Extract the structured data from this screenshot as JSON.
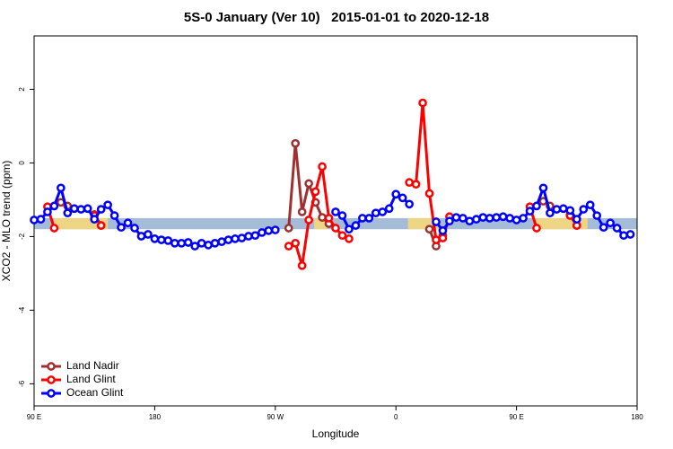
{
  "chart_data": {
    "type": "line",
    "title": "5S-0 January (Ver 10)   2015-01-01 to 2020-12-18",
    "x_label": "Longitude",
    "y_label": "XCO2 - MLO trend (ppm)",
    "xlim": [
      90,
      540
    ],
    "ylim": [
      -6.6,
      3.45
    ],
    "xticks": [
      {
        "value": 90,
        "label": "90 E"
      },
      180,
      {
        "value": 270,
        "label": "90 W"
      },
      {
        "value": 360,
        "label": "0"
      },
      {
        "value": 450,
        "label": "90 E"
      },
      {
        "value": 540,
        "label": "180"
      }
    ],
    "yticks": [
      -6,
      -4,
      -2,
      0,
      2
    ],
    "band": [
      -1.8,
      -1.5
    ],
    "band_color": "#a5bcd9",
    "land_patches": [
      [
        105,
        145
      ],
      [
        299,
        309
      ],
      [
        369,
        393
      ],
      [
        463,
        503
      ]
    ],
    "land_color": "#f5d77a",
    "legend": "bottom-left",
    "x": [
      90,
      95,
      100,
      105,
      110,
      115,
      120,
      125,
      130,
      135,
      140,
      145,
      150,
      155,
      160,
      165,
      170,
      175,
      180,
      185,
      190,
      195,
      200,
      205,
      210,
      215,
      220,
      225,
      230,
      235,
      240,
      245,
      250,
      255,
      260,
      265,
      270,
      275,
      280,
      285,
      290,
      295,
      300,
      305,
      310,
      315,
      320,
      325,
      330,
      335,
      340,
      345,
      350,
      355,
      360,
      365,
      370,
      375,
      380,
      385,
      390,
      395,
      400,
      405,
      410,
      415,
      420,
      425,
      430,
      435,
      440,
      445,
      450,
      455,
      460,
      465,
      470,
      475,
      480,
      485,
      490,
      495,
      500,
      505,
      510,
      515,
      520,
      525,
      530,
      535
    ],
    "series": [
      {
        "name": "Land Nadir",
        "color": "#a03030",
        "values": [
          null,
          null,
          null,
          null,
          -1.07,
          -1.17,
          null,
          null,
          null,
          -1.4,
          -1.7,
          null,
          null,
          null,
          null,
          null,
          null,
          null,
          null,
          null,
          null,
          null,
          null,
          null,
          null,
          null,
          null,
          null,
          null,
          null,
          null,
          null,
          null,
          null,
          null,
          null,
          null,
          null,
          -1.77,
          0.53,
          -1.33,
          -0.56,
          -1.07,
          -1.48,
          -1.65,
          null,
          null,
          null,
          null,
          null,
          null,
          null,
          null,
          null,
          null,
          null,
          null,
          null,
          null,
          -1.8,
          -2.26,
          -1.97,
          null,
          null,
          null,
          null,
          null,
          null,
          null,
          null,
          null,
          null,
          null,
          null,
          null,
          null,
          -1.04,
          -1.17,
          null,
          null,
          -1.4,
          -1.7,
          null,
          null,
          null,
          null,
          null,
          null,
          null,
          null
        ]
      },
      {
        "name": "Land Glint",
        "color": "#ff0000",
        "values": [
          null,
          null,
          -1.19,
          -1.77,
          null,
          null,
          null,
          null,
          null,
          -1.43,
          -1.7,
          null,
          null,
          null,
          null,
          null,
          null,
          null,
          null,
          null,
          null,
          null,
          null,
          null,
          null,
          null,
          null,
          null,
          null,
          null,
          null,
          null,
          null,
          null,
          null,
          null,
          null,
          null,
          -2.26,
          -2.18,
          -2.79,
          -1.55,
          -0.78,
          -0.1,
          -1.5,
          -1.77,
          -1.97,
          -2.06,
          null,
          null,
          null,
          null,
          null,
          null,
          null,
          null,
          -0.53,
          -0.58,
          1.63,
          -0.83,
          -2.09,
          -2.04,
          -1.46,
          null,
          null,
          null,
          null,
          null,
          null,
          null,
          null,
          null,
          null,
          null,
          -1.19,
          -1.77,
          null,
          null,
          null,
          null,
          -1.43,
          -1.7,
          null,
          null,
          null,
          null,
          null,
          null,
          null,
          null
        ]
      },
      {
        "name": "Ocean Glint",
        "color": "#0000ff",
        "values": [
          -1.55,
          -1.53,
          -1.33,
          -1.17,
          -0.68,
          -1.36,
          -1.24,
          -1.26,
          -1.24,
          -1.53,
          -1.26,
          -1.14,
          -1.43,
          -1.75,
          -1.63,
          -1.77,
          -1.99,
          -1.94,
          -2.06,
          -2.09,
          -2.11,
          -2.18,
          -2.18,
          -2.16,
          -2.26,
          -2.18,
          -2.23,
          -2.18,
          -2.14,
          -2.09,
          -2.06,
          -2.04,
          -1.99,
          -1.97,
          -1.89,
          -1.84,
          -1.82,
          null,
          null,
          null,
          null,
          null,
          null,
          null,
          null,
          -1.33,
          -1.43,
          -1.8,
          -1.7,
          -1.5,
          -1.5,
          -1.36,
          -1.33,
          -1.24,
          -0.85,
          -0.95,
          -1.12,
          null,
          null,
          null,
          -1.6,
          -1.84,
          -1.58,
          -1.48,
          -1.5,
          -1.58,
          -1.53,
          -1.48,
          -1.5,
          -1.48,
          -1.46,
          -1.5,
          -1.55,
          -1.5,
          -1.31,
          -1.17,
          -0.68,
          -1.36,
          -1.26,
          -1.24,
          -1.29,
          -1.53,
          -1.26,
          -1.14,
          -1.43,
          -1.75,
          -1.63,
          -1.77,
          -1.97,
          -1.94
        ]
      }
    ]
  }
}
